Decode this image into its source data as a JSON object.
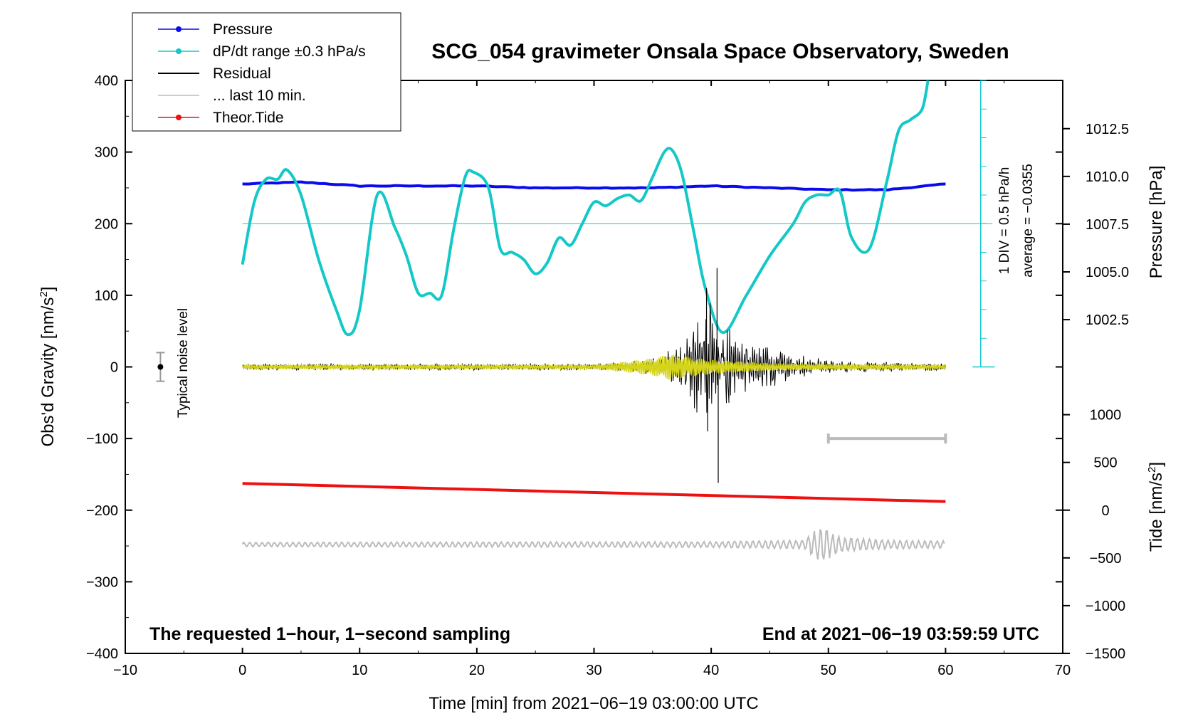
{
  "chart_data": {
    "type": "line",
    "title": "SCG_054 gravimeter Onsala Space Observatory, Sweden",
    "xlabel": "Time [min] from 2021−06−19 03:00:00 UTC",
    "ylabel_left": "Obs'd Gravity [nm/s",
    "ylabel_left_sup": "2",
    "ylabel_left_end": "]",
    "ylabel_right_top": "Pressure [hPa]",
    "ylabel_right_bottom": "Tide [nm/s",
    "ylabel_right_bottom_sup": "2",
    "ylabel_right_bottom_end": "]",
    "xlim": [
      -10,
      70
    ],
    "ylim": [
      -400,
      400
    ],
    "x_ticks": [
      {
        "v": -10,
        "label": "−10"
      },
      {
        "v": 0,
        "label": "0"
      },
      {
        "v": 10,
        "label": "10"
      },
      {
        "v": 20,
        "label": "20"
      },
      {
        "v": 30,
        "label": "30"
      },
      {
        "v": 40,
        "label": "40"
      },
      {
        "v": 50,
        "label": "50"
      },
      {
        "v": 60,
        "label": "60"
      },
      {
        "v": 70,
        "label": "70"
      }
    ],
    "y_ticks": [
      {
        "v": 400,
        "label": "400"
      },
      {
        "v": 300,
        "label": "300"
      },
      {
        "v": 200,
        "label": "200"
      },
      {
        "v": 100,
        "label": "100"
      },
      {
        "v": 0,
        "label": "0"
      },
      {
        "v": -100,
        "label": "−100"
      },
      {
        "v": -200,
        "label": "−200"
      },
      {
        "v": -300,
        "label": "−300"
      },
      {
        "v": -400,
        "label": "−400"
      }
    ],
    "pressure_axis": {
      "unit_offset_gravity_at_1000": -3.0,
      "gravity_per_hpa": 13.4,
      "ticks": [
        {
          "v": 1012.5,
          "label": "1012.5"
        },
        {
          "v": 1010.0,
          "label": "1010.0"
        },
        {
          "v": 1007.5,
          "label": "1007.5"
        },
        {
          "v": 1005.0,
          "label": "1005.0"
        },
        {
          "v": 1002.5,
          "label": "1002.5"
        }
      ]
    },
    "tide_axis": {
      "gravity_at_tide_0": -200,
      "gravity_per_tide_unit": 0.1333,
      "ticks": [
        {
          "v": 1000,
          "label": "1000"
        },
        {
          "v": 500,
          "label": "500"
        },
        {
          "v": 0,
          "label": "0"
        },
        {
          "v": -500,
          "label": "−500"
        },
        {
          "v": -1000,
          "label": "−1000"
        },
        {
          "v": -1500,
          "label": "−1500"
        }
      ]
    },
    "dpdt_scale": {
      "baseline_gravity": 0,
      "zero_line_gravity": 200,
      "top_gravity": 400,
      "div_labels": "1 DIV = 0.5 hPa/h",
      "average_label": "average = −0.0355"
    },
    "legend": {
      "position": "top-left",
      "entries": [
        {
          "label": "Pressure",
          "color": "#0a0aee",
          "marker": true
        },
        {
          "label": "dP/dt range ±0.3 hPa/s",
          "color": "#14c8c8",
          "marker": true
        },
        {
          "label": "Residual",
          "color": "#000000",
          "marker": false
        },
        {
          "label": "... last 10 min.",
          "color": "#bbbbbb",
          "marker": false
        },
        {
          "label": "Theor.Tide",
          "color": "#ee1111",
          "marker": true
        }
      ]
    },
    "noise_level": {
      "label": "Typical noise level",
      "x": -7,
      "value": 0,
      "range": [
        -20,
        20
      ]
    },
    "last10_bar": {
      "x_start": 50,
      "x_end": 60,
      "y": -100
    },
    "notes": {
      "left": "The requested 1−hour, 1−second sampling",
      "right": "End at 2021−06−19 03:59:59 UTC"
    },
    "series": [
      {
        "name": "Pressure",
        "color": "#0a0aee",
        "unit": "hPa",
        "x": [
          0,
          5,
          10,
          15,
          20,
          25,
          30,
          35,
          40,
          45,
          50,
          55,
          60
        ],
        "values": [
          1009.6,
          1009.7,
          1009.5,
          1009.5,
          1009.5,
          1009.4,
          1009.4,
          1009.4,
          1009.5,
          1009.4,
          1009.3,
          1009.3,
          1009.6
        ]
      },
      {
        "name": "dP/dt",
        "color": "#14c8c8",
        "unit": "gravity-axis",
        "x": [
          0,
          1,
          2,
          3,
          3.8,
          5,
          6.5,
          8,
          9,
          10,
          11.5,
          13,
          14,
          15,
          16,
          17,
          18,
          19,
          19.7,
          21,
          22,
          23,
          24,
          25,
          26,
          27,
          28,
          29,
          30,
          31,
          32,
          33,
          34,
          35,
          36,
          36.7,
          37.5,
          38.5,
          39.5,
          41,
          43,
          45,
          47,
          48,
          49,
          50,
          51,
          52,
          53.5,
          55,
          56,
          57,
          58,
          58.5
        ],
        "values": [
          143,
          230,
          262,
          262,
          275,
          240,
          150,
          80,
          45,
          80,
          240,
          195,
          155,
          103,
          103,
          100,
          190,
          265,
          272,
          250,
          165,
          160,
          150,
          130,
          145,
          180,
          170,
          200,
          230,
          225,
          235,
          240,
          232,
          265,
          300,
          302,
          270,
          190,
          110,
          48,
          100,
          155,
          200,
          230,
          240,
          240,
          245,
          180,
          165,
          260,
          330,
          345,
          360,
          400
        ]
      },
      {
        "name": "Residual",
        "color": "#000000",
        "envelope_x": [
          0,
          10,
          20,
          30,
          33,
          35,
          37,
          38,
          39,
          40,
          41,
          42,
          43,
          45,
          47,
          50,
          55,
          60
        ],
        "envelope_amp": [
          5,
          5,
          5,
          5,
          8,
          12,
          30,
          50,
          80,
          95,
          70,
          45,
          40,
          30,
          18,
          10,
          7,
          5
        ],
        "peak_points": [
          {
            "x": 39.6,
            "v": 110
          },
          {
            "x": 40.5,
            "v": 138
          },
          {
            "x": 40.6,
            "v": -162
          },
          {
            "x": 39.7,
            "v": -90
          }
        ]
      },
      {
        "name": "Microseism (yellow)",
        "color": "#d4d41a",
        "envelope_x": [
          0,
          30,
          33,
          35,
          36.5,
          38,
          40,
          42,
          45,
          50,
          60
        ],
        "envelope_amp": [
          3,
          3,
          8,
          12,
          18,
          14,
          10,
          8,
          5,
          4,
          3
        ]
      },
      {
        "name": "Theor.Tide",
        "color": "#ee1111",
        "unit": "nm/s^2",
        "x": [
          0,
          60
        ],
        "values": [
          280,
          90
        ]
      },
      {
        "name": "... last 10 min.",
        "color": "#bbbbbb",
        "baseline_gravity": -248,
        "envelope_x": [
          0,
          40,
          48,
          49,
          50,
          51,
          55,
          60
        ],
        "envelope_amp": [
          3,
          4,
          6,
          22,
          20,
          10,
          6,
          5
        ]
      }
    ]
  }
}
